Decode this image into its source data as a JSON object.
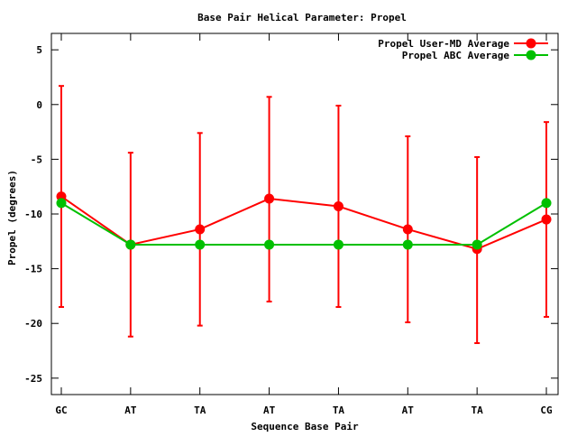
{
  "chart_data": {
    "type": "line",
    "title": "Base Pair Helical Parameter: Propel",
    "xlabel": "Sequence Base Pair",
    "ylabel": "Propel (degrees)",
    "categories": [
      "GC",
      "AT",
      "TA",
      "AT",
      "TA",
      "AT",
      "TA",
      "CG"
    ],
    "ylim": [
      -26.5,
      6.5
    ],
    "yticks": [
      5,
      0,
      -5,
      -10,
      -15,
      -20,
      -25
    ],
    "grid": false,
    "legend_position": "top-right",
    "series": [
      {
        "name": "Propel User-MD Average",
        "color": "#ff0000",
        "values": [
          -8.4,
          -12.8,
          -11.4,
          -8.6,
          -9.3,
          -11.4,
          -13.2,
          -10.5
        ],
        "error_bars": {
          "low": [
            -18.5,
            -21.2,
            -20.2,
            -18.0,
            -18.5,
            -19.9,
            -21.8,
            -19.4
          ],
          "high": [
            1.7,
            -4.4,
            -2.6,
            0.7,
            -0.1,
            -2.9,
            -4.8,
            -1.6
          ]
        }
      },
      {
        "name": "Propel ABC Average",
        "color": "#00c000",
        "values": [
          -9.0,
          -12.8,
          -12.8,
          -12.8,
          -12.8,
          -12.8,
          -12.8,
          -9.0
        ]
      }
    ]
  }
}
